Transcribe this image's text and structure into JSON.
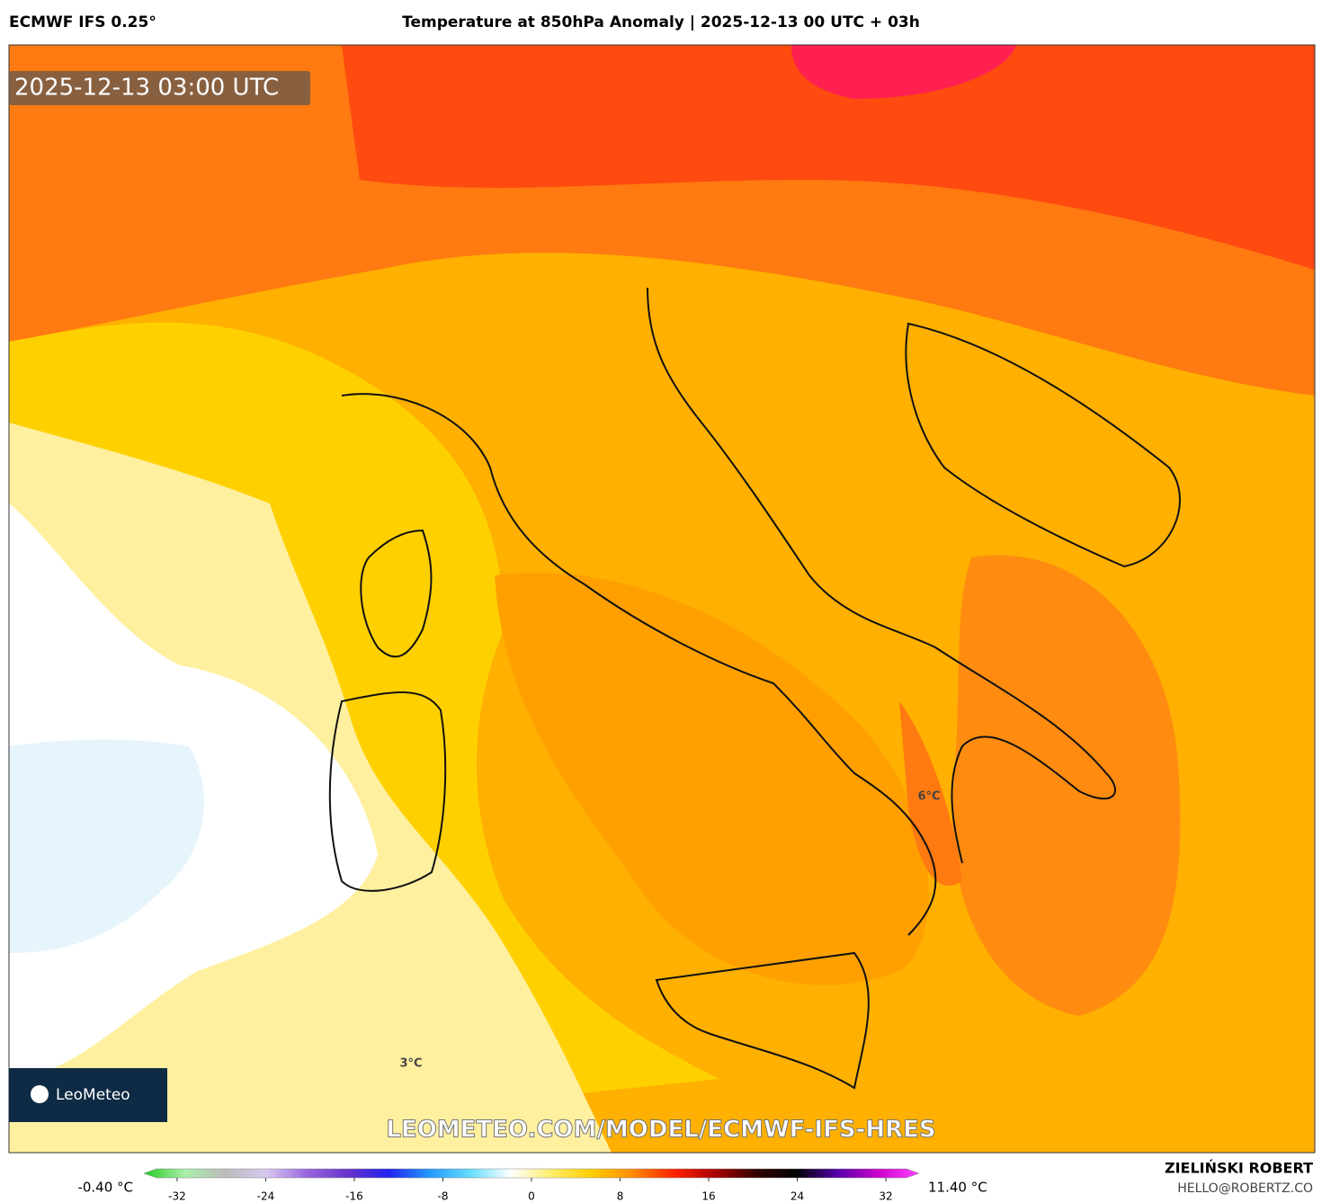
{
  "header": {
    "model": "ECMWF IFS 0.25°",
    "title": "Temperature at 850hPa Anomaly | 2025-12-13 00 UTC + 03h"
  },
  "map": {
    "timestamp": "2025-12-13 03:00 UTC",
    "labels": [
      "6°C",
      "3°C"
    ],
    "watermark": "LEOMETEO.COM/MODEL/ECMWF-IFS-HRES",
    "logo": "LeoMeteo"
  },
  "colorbar": {
    "min_label": "-0.40 °C",
    "max_label": "11.40 °C",
    "lim": [
      -35,
      35
    ],
    "ticks": [
      -32,
      -24,
      -16,
      -8,
      0,
      8,
      16,
      24,
      32
    ],
    "colors": [
      "#22cc22",
      "#aaeeaa",
      "#bbbbbb",
      "#d8c8f0",
      "#9966dd",
      "#6633cc",
      "#2222ee",
      "#2299ff",
      "#66ddff",
      "#ffffff",
      "#ffee66",
      "#ffcc00",
      "#ff8800",
      "#ff2200",
      "#aa0000",
      "#330000",
      "#000000",
      "#5500aa",
      "#cc00cc",
      "#ff44ff"
    ]
  },
  "footer": {
    "author": "ZIELIŃSKI ROBERT",
    "email": "HELLO@ROBERTZ.CO"
  }
}
